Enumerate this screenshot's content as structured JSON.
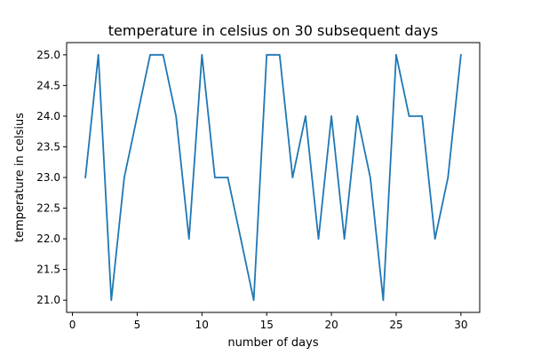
{
  "chart_data": {
    "type": "line",
    "title": "temperature in celsius on 30 subsequent days",
    "xlabel": "number of days",
    "ylabel": "temperature in celsius",
    "xlim": [
      -0.45,
      31.45
    ],
    "ylim": [
      20.8,
      25.2
    ],
    "xticks": [
      0,
      5,
      10,
      15,
      20,
      25,
      30
    ],
    "yticks": [
      21.0,
      21.5,
      22.0,
      22.5,
      23.0,
      23.5,
      24.0,
      24.5,
      25.0
    ],
    "ytick_labels": [
      "21.0",
      "21.5",
      "22.0",
      "22.5",
      "23.0",
      "23.5",
      "24.0",
      "24.5",
      "25.0"
    ],
    "grid": false,
    "legend": "none",
    "series": [
      {
        "color": "#1f77b4",
        "x": [
          1,
          2,
          3,
          4,
          5,
          6,
          7,
          8,
          9,
          10,
          11,
          12,
          13,
          14,
          15,
          16,
          17,
          18,
          19,
          20,
          21,
          22,
          23,
          24,
          25,
          26,
          27,
          28,
          29,
          30
        ],
        "y": [
          23,
          25,
          21,
          23,
          24,
          25,
          25,
          24,
          22,
          25,
          23,
          23,
          22,
          21,
          25,
          25,
          23,
          24,
          22,
          24,
          22,
          24,
          23,
          21,
          25,
          24,
          24,
          22,
          23,
          25
        ]
      }
    ]
  }
}
